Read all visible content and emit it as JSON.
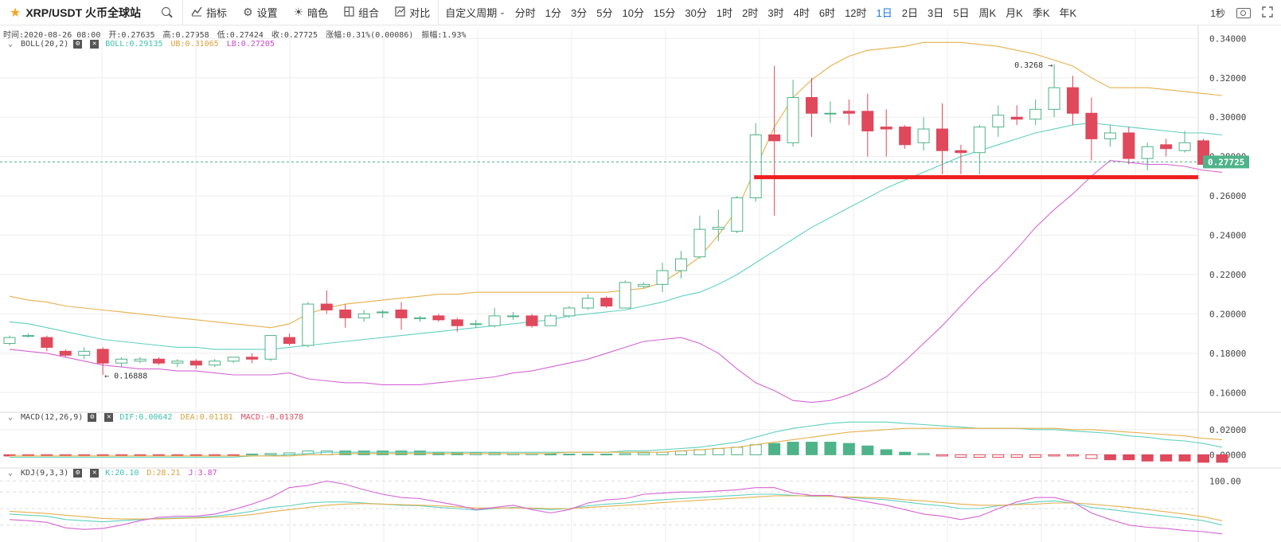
{
  "toolbar": {
    "symbol": "XRP/USDT 火币全球站",
    "indicators_label": "指标",
    "settings_label": "设置",
    "theme_label": "暗色",
    "combo_label": "组合",
    "compare_label": "对比",
    "custom_period_label": "自定义周期",
    "periods": [
      "分时",
      "1分",
      "3分",
      "5分",
      "10分",
      "15分",
      "30分",
      "1时",
      "2时",
      "3时",
      "4时",
      "6时",
      "12时",
      "1日",
      "2日",
      "3日",
      "5日",
      "周K",
      "月K",
      "季K",
      "年K"
    ],
    "active_period": "1日",
    "refresh_label": "1秒",
    "icons": {
      "star": "star-icon",
      "search": "search-icon",
      "indicators": "chart-line-icon",
      "settings": "gear-icon",
      "theme": "sun-icon",
      "combo": "grid-icon",
      "compare": "compare-icon",
      "camera": "camera-icon",
      "fullscreen": "expand-icon"
    }
  },
  "ohlc_info": {
    "time": "时间:2020-08-26 08:00",
    "open": "开:0.27635",
    "high": "高:0.27958",
    "low": "低:0.27424",
    "close": "收:0.27725",
    "change": "涨幅:0.31%(0.00086)",
    "amplitude": "振幅:1.93%"
  },
  "boll_info": {
    "name": "BOLL(20,2)",
    "mid": "BOLL:0.29135",
    "ub": "UB:0.31065",
    "lb": "LB:0.27205"
  },
  "macd_info": {
    "name": "MACD(12,26,9)",
    "dif": "DIF:0.00642",
    "dea": "DEA:0.01181",
    "macd": "MACD:-0.01078"
  },
  "kdj_info": {
    "name": "KDJ(9,3,3)",
    "k": "K:20.10",
    "d": "D:28.21",
    "j": "J:3.87"
  },
  "colors": {
    "up": "#4eb389",
    "down": "#e0485b",
    "mid": "#5fd1c0",
    "upper": "#e5b04c",
    "lower": "#d464d4",
    "grid": "#eeeeee",
    "support_line": "#ef1f1f",
    "price_tag": "#4eb389"
  },
  "chart_data": {
    "type": "candlestick",
    "price_axis": {
      "min": 0.15,
      "max": 0.345,
      "ticks": [
        "0.34000",
        "0.32000",
        "0.30000",
        "0.28000",
        "0.26000",
        "0.24000",
        "0.22000",
        "0.20000",
        "0.18000",
        "0.16000"
      ]
    },
    "macd_axis": {
      "ticks": [
        "0.02000",
        "0.00000"
      ]
    },
    "kdj_axis": {
      "ticks": [
        "100.00"
      ]
    },
    "last_price": "0.27725",
    "max_label": "0.3268 →",
    "min_label": "← 0.16888",
    "support_level": 0.2695,
    "candles": [
      [
        0.185,
        0.189,
        0.184,
        0.188
      ],
      [
        0.189,
        0.19,
        0.188,
        0.189
      ],
      [
        0.188,
        0.189,
        0.181,
        0.183
      ],
      [
        0.181,
        0.182,
        0.178,
        0.179
      ],
      [
        0.179,
        0.183,
        0.177,
        0.181
      ],
      [
        0.182,
        0.183,
        0.169,
        0.175
      ],
      [
        0.175,
        0.178,
        0.173,
        0.177
      ],
      [
        0.176,
        0.178,
        0.175,
        0.177
      ],
      [
        0.177,
        0.178,
        0.174,
        0.175
      ],
      [
        0.175,
        0.177,
        0.173,
        0.176
      ],
      [
        0.176,
        0.177,
        0.172,
        0.174
      ],
      [
        0.174,
        0.177,
        0.173,
        0.176
      ],
      [
        0.176,
        0.178,
        0.175,
        0.178
      ],
      [
        0.178,
        0.18,
        0.175,
        0.177
      ],
      [
        0.177,
        0.189,
        0.176,
        0.189
      ],
      [
        0.188,
        0.19,
        0.184,
        0.185
      ],
      [
        0.184,
        0.206,
        0.183,
        0.205
      ],
      [
        0.205,
        0.212,
        0.2,
        0.202
      ],
      [
        0.202,
        0.205,
        0.193,
        0.198
      ],
      [
        0.198,
        0.202,
        0.196,
        0.2
      ],
      [
        0.201,
        0.202,
        0.198,
        0.201
      ],
      [
        0.202,
        0.206,
        0.192,
        0.198
      ],
      [
        0.198,
        0.199,
        0.196,
        0.198
      ],
      [
        0.199,
        0.2,
        0.196,
        0.197
      ],
      [
        0.197,
        0.198,
        0.191,
        0.194
      ],
      [
        0.195,
        0.197,
        0.193,
        0.195
      ],
      [
        0.194,
        0.203,
        0.193,
        0.199
      ],
      [
        0.199,
        0.201,
        0.197,
        0.199
      ],
      [
        0.199,
        0.2,
        0.193,
        0.194
      ],
      [
        0.194,
        0.2,
        0.194,
        0.199
      ],
      [
        0.199,
        0.204,
        0.198,
        0.203
      ],
      [
        0.203,
        0.21,
        0.202,
        0.208
      ],
      [
        0.208,
        0.209,
        0.203,
        0.204
      ],
      [
        0.203,
        0.217,
        0.203,
        0.216
      ],
      [
        0.214,
        0.216,
        0.213,
        0.215
      ],
      [
        0.215,
        0.226,
        0.211,
        0.222
      ],
      [
        0.222,
        0.232,
        0.218,
        0.228
      ],
      [
        0.229,
        0.25,
        0.228,
        0.243
      ],
      [
        0.243,
        0.253,
        0.237,
        0.244
      ],
      [
        0.242,
        0.26,
        0.241,
        0.259
      ],
      [
        0.259,
        0.297,
        0.257,
        0.291
      ],
      [
        0.291,
        0.326,
        0.25,
        0.288
      ],
      [
        0.287,
        0.319,
        0.285,
        0.31
      ],
      [
        0.31,
        0.32,
        0.29,
        0.302
      ],
      [
        0.302,
        0.308,
        0.297,
        0.302
      ],
      [
        0.303,
        0.309,
        0.296,
        0.302
      ],
      [
        0.303,
        0.312,
        0.28,
        0.293
      ],
      [
        0.295,
        0.304,
        0.28,
        0.294
      ],
      [
        0.295,
        0.296,
        0.284,
        0.286
      ],
      [
        0.287,
        0.3,
        0.283,
        0.294
      ],
      [
        0.294,
        0.307,
        0.271,
        0.283
      ],
      [
        0.283,
        0.286,
        0.271,
        0.282
      ],
      [
        0.282,
        0.296,
        0.271,
        0.295
      ],
      [
        0.295,
        0.306,
        0.29,
        0.301
      ],
      [
        0.3,
        0.306,
        0.296,
        0.299
      ],
      [
        0.299,
        0.309,
        0.296,
        0.304
      ],
      [
        0.304,
        0.327,
        0.3,
        0.315
      ],
      [
        0.315,
        0.321,
        0.296,
        0.302
      ],
      [
        0.302,
        0.31,
        0.278,
        0.289
      ],
      [
        0.289,
        0.296,
        0.285,
        0.292
      ],
      [
        0.292,
        0.295,
        0.276,
        0.279
      ],
      [
        0.279,
        0.287,
        0.273,
        0.285
      ],
      [
        0.286,
        0.289,
        0.28,
        0.284
      ],
      [
        0.283,
        0.293,
        0.282,
        0.287
      ],
      [
        0.288,
        0.289,
        0.274,
        0.276
      ],
      [
        0.276,
        0.28,
        0.274,
        0.277
      ]
    ],
    "boll_mid": [
      0.196,
      0.195,
      0.193,
      0.191,
      0.189,
      0.187,
      0.186,
      0.185,
      0.184,
      0.183,
      0.183,
      0.182,
      0.182,
      0.182,
      0.182,
      0.183,
      0.184,
      0.185,
      0.186,
      0.187,
      0.188,
      0.189,
      0.19,
      0.191,
      0.192,
      0.193,
      0.194,
      0.195,
      0.196,
      0.197,
      0.199,
      0.2,
      0.201,
      0.202,
      0.204,
      0.206,
      0.209,
      0.211,
      0.215,
      0.22,
      0.226,
      0.232,
      0.238,
      0.244,
      0.249,
      0.254,
      0.259,
      0.264,
      0.268,
      0.272,
      0.276,
      0.28,
      0.283,
      0.286,
      0.289,
      0.292,
      0.294,
      0.296,
      0.297,
      0.296,
      0.295,
      0.294,
      0.293,
      0.292,
      0.292,
      0.291
    ],
    "boll_upper": [
      0.209,
      0.207,
      0.206,
      0.204,
      0.203,
      0.202,
      0.201,
      0.2,
      0.199,
      0.198,
      0.197,
      0.196,
      0.195,
      0.194,
      0.193,
      0.195,
      0.2,
      0.203,
      0.205,
      0.206,
      0.207,
      0.208,
      0.209,
      0.21,
      0.21,
      0.211,
      0.211,
      0.211,
      0.211,
      0.211,
      0.211,
      0.211,
      0.211,
      0.212,
      0.213,
      0.216,
      0.222,
      0.229,
      0.24,
      0.253,
      0.274,
      0.295,
      0.31,
      0.319,
      0.326,
      0.331,
      0.334,
      0.335,
      0.336,
      0.338,
      0.338,
      0.338,
      0.337,
      0.336,
      0.334,
      0.332,
      0.329,
      0.326,
      0.32,
      0.315,
      0.315,
      0.315,
      0.314,
      0.313,
      0.312,
      0.311
    ],
    "boll_lower": [
      0.182,
      0.181,
      0.18,
      0.178,
      0.176,
      0.174,
      0.173,
      0.172,
      0.172,
      0.171,
      0.171,
      0.17,
      0.169,
      0.169,
      0.169,
      0.17,
      0.167,
      0.166,
      0.165,
      0.165,
      0.164,
      0.164,
      0.164,
      0.165,
      0.166,
      0.167,
      0.168,
      0.17,
      0.171,
      0.173,
      0.175,
      0.177,
      0.18,
      0.183,
      0.186,
      0.187,
      0.188,
      0.185,
      0.18,
      0.172,
      0.165,
      0.161,
      0.156,
      0.155,
      0.156,
      0.159,
      0.163,
      0.168,
      0.176,
      0.185,
      0.194,
      0.204,
      0.214,
      0.223,
      0.233,
      0.244,
      0.253,
      0.261,
      0.27,
      0.278,
      0.277,
      0.276,
      0.276,
      0.275,
      0.273,
      0.272
    ],
    "macd_hist": [
      -0.001,
      -0.001,
      -0.001,
      -0.001,
      -0.001,
      -0.001,
      -0.001,
      -0.001,
      -0.001,
      -0.001,
      -0.001,
      -0.001,
      -0.0005,
      0.0005,
      0.001,
      0.0015,
      0.003,
      0.003,
      0.003,
      0.003,
      0.003,
      0.003,
      0.003,
      0.002,
      0.0015,
      0.0015,
      0.0015,
      0.001,
      0.001,
      0.0005,
      0.0005,
      0.0005,
      0.0005,
      0.001,
      0.0015,
      0.002,
      0.003,
      0.004,
      0.005,
      0.006,
      0.008,
      0.009,
      0.01,
      0.01,
      0.01,
      0.009,
      0.007,
      0.004,
      0.002,
      0.001,
      -0.001,
      -0.002,
      -0.002,
      -0.002,
      -0.002,
      -0.002,
      -0.001,
      -0.001,
      -0.003,
      -0.004,
      -0.004,
      -0.005,
      -0.005,
      -0.005,
      -0.006,
      -0.006
    ],
    "macd_dif": [
      -0.002,
      -0.002,
      -0.002,
      -0.002,
      -0.002,
      -0.002,
      -0.002,
      -0.002,
      -0.002,
      -0.002,
      -0.002,
      -0.002,
      -0.002,
      -0.001,
      -0.001,
      0.0,
      0.001,
      0.002,
      0.002,
      0.002,
      0.002,
      0.002,
      0.002,
      0.002,
      0.002,
      0.002,
      0.002,
      0.002,
      0.002,
      0.002,
      0.002,
      0.002,
      0.002,
      0.003,
      0.003,
      0.004,
      0.005,
      0.006,
      0.008,
      0.01,
      0.014,
      0.018,
      0.021,
      0.023,
      0.025,
      0.026,
      0.026,
      0.026,
      0.025,
      0.024,
      0.023,
      0.022,
      0.021,
      0.021,
      0.021,
      0.02,
      0.02,
      0.019,
      0.018,
      0.017,
      0.015,
      0.014,
      0.012,
      0.011,
      0.009,
      0.006
    ],
    "macd_dea": [
      -0.001,
      -0.001,
      -0.001,
      -0.001,
      -0.001,
      -0.001,
      -0.001,
      -0.001,
      -0.001,
      -0.001,
      -0.001,
      -0.001,
      -0.001,
      -0.001,
      -0.001,
      -0.001,
      0.0,
      0.0,
      0.001,
      0.001,
      0.001,
      0.001,
      0.001,
      0.001,
      0.001,
      0.001,
      0.001,
      0.001,
      0.001,
      0.001,
      0.002,
      0.002,
      0.002,
      0.002,
      0.002,
      0.002,
      0.003,
      0.004,
      0.005,
      0.006,
      0.008,
      0.01,
      0.012,
      0.014,
      0.016,
      0.018,
      0.019,
      0.02,
      0.021,
      0.021,
      0.021,
      0.021,
      0.021,
      0.021,
      0.021,
      0.021,
      0.021,
      0.02,
      0.02,
      0.019,
      0.018,
      0.017,
      0.016,
      0.015,
      0.013,
      0.012
    ],
    "kdj_k": [
      40,
      38,
      36,
      30,
      28,
      26,
      28,
      30,
      32,
      33,
      34,
      36,
      40,
      45,
      52,
      55,
      60,
      62,
      62,
      60,
      58,
      56,
      55,
      52,
      50,
      47,
      50,
      52,
      50,
      48,
      50,
      55,
      58,
      60,
      64,
      66,
      68,
      70,
      72,
      74,
      76,
      76,
      74,
      72,
      72,
      70,
      68,
      66,
      62,
      58,
      55,
      50,
      50,
      55,
      58,
      62,
      64,
      60,
      52,
      48,
      44,
      40,
      36,
      32,
      28,
      20
    ],
    "kdj_d": [
      45,
      43,
      41,
      38,
      35,
      32,
      31,
      31,
      31,
      32,
      33,
      34,
      36,
      39,
      44,
      48,
      52,
      56,
      58,
      59,
      58,
      57,
      56,
      55,
      53,
      51,
      51,
      51,
      51,
      50,
      50,
      52,
      54,
      56,
      58,
      61,
      63,
      65,
      67,
      69,
      71,
      73,
      73,
      73,
      72,
      71,
      70,
      69,
      66,
      64,
      61,
      58,
      56,
      56,
      57,
      58,
      60,
      60,
      58,
      55,
      52,
      48,
      44,
      40,
      35,
      28
    ],
    "kdj_j": [
      30,
      28,
      25,
      15,
      12,
      14,
      20,
      28,
      34,
      36,
      36,
      40,
      48,
      58,
      70,
      88,
      92,
      100,
      94,
      84,
      76,
      70,
      68,
      62,
      56,
      48,
      52,
      56,
      48,
      42,
      48,
      60,
      66,
      68,
      76,
      78,
      80,
      80,
      82,
      84,
      88,
      88,
      78,
      74,
      74,
      68,
      62,
      56,
      48,
      40,
      36,
      30,
      36,
      50,
      62,
      70,
      70,
      62,
      42,
      30,
      20,
      16,
      14,
      10,
      8,
      4
    ]
  }
}
